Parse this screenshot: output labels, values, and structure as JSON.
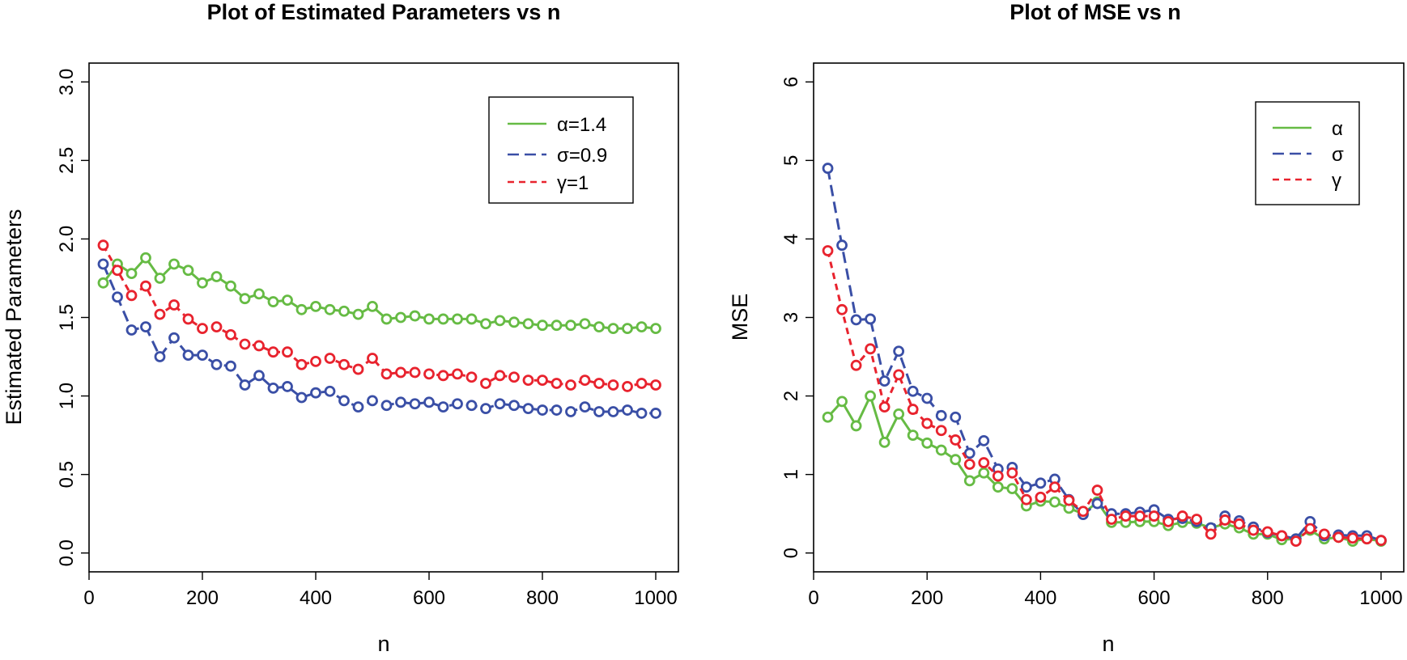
{
  "colors": {
    "alpha": "#66bb44",
    "sigma": "#3a4fa6",
    "gamma": "#e8232e"
  },
  "chart_data": [
    {
      "type": "line",
      "title": "Plot of Estimated Parameters vs n",
      "xlabel": "n",
      "ylabel": "Estimated Parameters",
      "xlim": [
        0,
        1040
      ],
      "ylim": [
        -0.12,
        3.12
      ],
      "xticks": [
        0,
        200,
        400,
        600,
        800,
        1000
      ],
      "xtick_labels": [
        "0",
        "200",
        "400",
        "600",
        "800",
        "1000"
      ],
      "yticks": [
        0,
        0.5,
        1,
        1.5,
        2,
        2.5,
        3
      ],
      "ytick_labels": [
        "0.0",
        "0.5",
        "1.0",
        "1.5",
        "2.0",
        "2.5",
        "3.0"
      ],
      "legend_position": "top-right",
      "x": [
        25,
        50,
        75,
        100,
        125,
        150,
        175,
        200,
        225,
        250,
        275,
        300,
        325,
        350,
        375,
        400,
        425,
        450,
        475,
        500,
        525,
        550,
        575,
        600,
        625,
        650,
        675,
        700,
        725,
        750,
        775,
        800,
        825,
        850,
        875,
        900,
        925,
        950,
        975,
        1000
      ],
      "series": [
        {
          "key": "alpha",
          "name": "α=1.4",
          "dash": "solid",
          "values": [
            1.72,
            1.84,
            1.78,
            1.88,
            1.75,
            1.84,
            1.8,
            1.72,
            1.76,
            1.7,
            1.62,
            1.65,
            1.6,
            1.61,
            1.55,
            1.57,
            1.55,
            1.54,
            1.52,
            1.57,
            1.49,
            1.5,
            1.51,
            1.49,
            1.49,
            1.49,
            1.49,
            1.46,
            1.48,
            1.47,
            1.46,
            1.45,
            1.45,
            1.45,
            1.46,
            1.44,
            1.43,
            1.43,
            1.44,
            1.43
          ]
        },
        {
          "key": "sigma",
          "name": "σ=0.9",
          "dash": "long",
          "values": [
            1.84,
            1.63,
            1.42,
            1.44,
            1.25,
            1.37,
            1.26,
            1.26,
            1.2,
            1.19,
            1.07,
            1.13,
            1.05,
            1.06,
            0.99,
            1.02,
            1.03,
            0.97,
            0.93,
            0.97,
            0.94,
            0.96,
            0.95,
            0.96,
            0.93,
            0.95,
            0.94,
            0.92,
            0.95,
            0.94,
            0.92,
            0.91,
            0.91,
            0.9,
            0.93,
            0.9,
            0.9,
            0.91,
            0.89,
            0.89
          ]
        },
        {
          "key": "gamma",
          "name": "γ=1",
          "dash": "short",
          "values": [
            1.96,
            1.8,
            1.64,
            1.7,
            1.52,
            1.58,
            1.49,
            1.43,
            1.44,
            1.39,
            1.33,
            1.32,
            1.28,
            1.28,
            1.2,
            1.22,
            1.24,
            1.2,
            1.17,
            1.24,
            1.14,
            1.15,
            1.15,
            1.14,
            1.13,
            1.14,
            1.12,
            1.08,
            1.13,
            1.12,
            1.1,
            1.1,
            1.08,
            1.07,
            1.1,
            1.08,
            1.07,
            1.06,
            1.08,
            1.07
          ]
        }
      ]
    },
    {
      "type": "line",
      "title": "Plot of MSE vs n",
      "xlabel": "n",
      "ylabel": "MSE",
      "xlim": [
        0,
        1040
      ],
      "ylim": [
        -0.24,
        6.24
      ],
      "xticks": [
        0,
        200,
        400,
        600,
        800,
        1000
      ],
      "xtick_labels": [
        "0",
        "200",
        "400",
        "600",
        "800",
        "1000"
      ],
      "yticks": [
        0,
        1,
        2,
        3,
        4,
        5,
        6
      ],
      "ytick_labels": [
        "0",
        "1",
        "2",
        "3",
        "4",
        "5",
        "6"
      ],
      "legend_position": "top-right",
      "x": [
        25,
        50,
        75,
        100,
        125,
        150,
        175,
        200,
        225,
        250,
        275,
        300,
        325,
        350,
        375,
        400,
        425,
        450,
        475,
        500,
        525,
        550,
        575,
        600,
        625,
        650,
        675,
        700,
        725,
        750,
        775,
        800,
        825,
        850,
        875,
        900,
        925,
        950,
        975,
        1000
      ],
      "series": [
        {
          "key": "alpha",
          "name": "α",
          "dash": "solid",
          "values": [
            1.73,
            1.93,
            1.62,
            2.0,
            1.41,
            1.77,
            1.5,
            1.4,
            1.31,
            1.19,
            0.92,
            1.02,
            0.84,
            0.82,
            0.6,
            0.66,
            0.65,
            0.57,
            0.5,
            0.65,
            0.39,
            0.39,
            0.4,
            0.4,
            0.35,
            0.39,
            0.38,
            0.32,
            0.37,
            0.32,
            0.24,
            0.24,
            0.17,
            0.18,
            0.29,
            0.18,
            0.2,
            0.15,
            0.18,
            0.15
          ]
        },
        {
          "key": "sigma",
          "name": "σ",
          "dash": "long",
          "values": [
            4.9,
            3.92,
            2.97,
            2.98,
            2.19,
            2.57,
            2.06,
            1.97,
            1.75,
            1.73,
            1.27,
            1.43,
            1.07,
            1.09,
            0.84,
            0.89,
            0.94,
            0.68,
            0.49,
            0.63,
            0.5,
            0.5,
            0.52,
            0.55,
            0.43,
            0.44,
            0.4,
            0.32,
            0.47,
            0.41,
            0.33,
            0.26,
            0.22,
            0.18,
            0.4,
            0.22,
            0.23,
            0.22,
            0.22,
            0.16
          ]
        },
        {
          "key": "gamma",
          "name": "γ",
          "dash": "short",
          "values": [
            3.85,
            3.1,
            2.39,
            2.6,
            1.86,
            2.27,
            1.83,
            1.65,
            1.56,
            1.44,
            1.13,
            1.15,
            0.98,
            1.02,
            0.68,
            0.71,
            0.84,
            0.67,
            0.53,
            0.8,
            0.43,
            0.47,
            0.47,
            0.47,
            0.4,
            0.47,
            0.43,
            0.24,
            0.42,
            0.37,
            0.29,
            0.27,
            0.22,
            0.15,
            0.31,
            0.24,
            0.2,
            0.19,
            0.18,
            0.16
          ]
        }
      ]
    }
  ]
}
